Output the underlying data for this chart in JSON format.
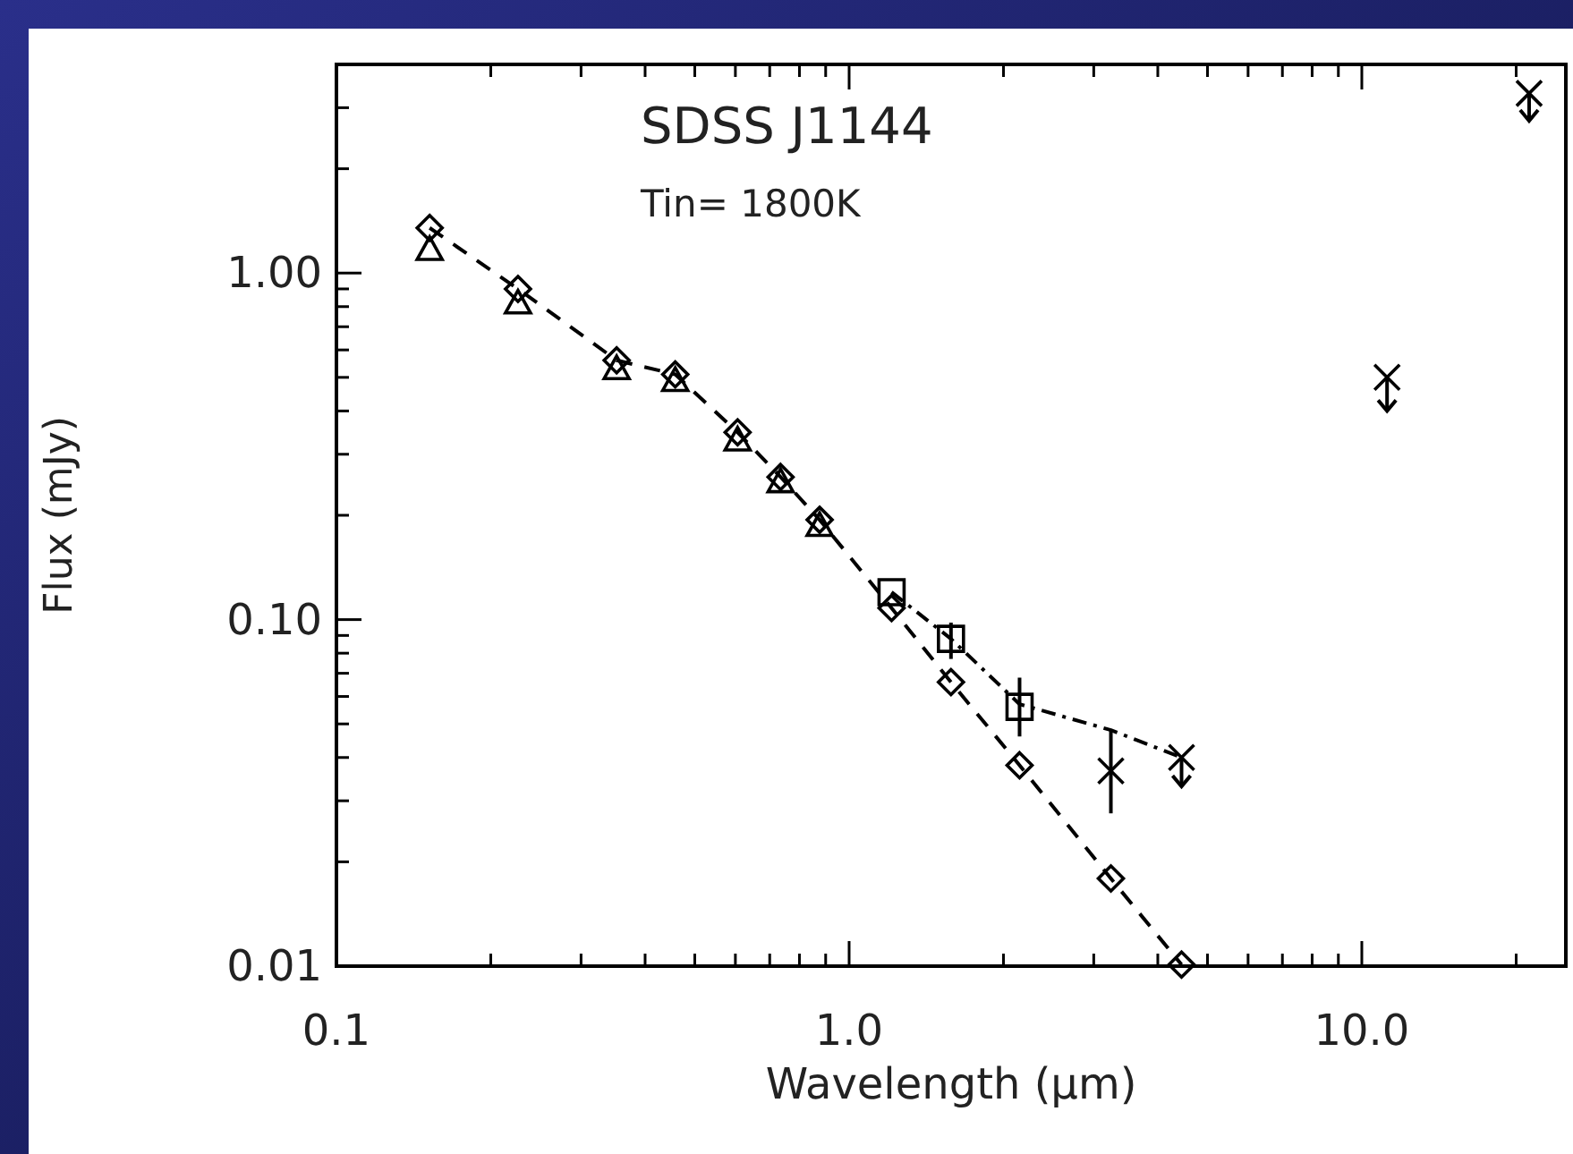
{
  "chart_data": {
    "type": "scatter",
    "title": "SDSS J1144",
    "annotations": [
      "Tin= 1800K"
    ],
    "xlabel": "Wavelength (μm)",
    "ylabel": "Flux (mJy)",
    "log": "xy",
    "xlim": [
      0.1,
      25
    ],
    "ylim": [
      0.01,
      4
    ],
    "xticks": [
      0.1,
      {
        "value": 0.2,
        "label": null
      },
      {
        "value": 0.3,
        "label": null
      },
      {
        "value": 0.4,
        "label": null
      },
      {
        "value": 0.5,
        "label": null
      },
      {
        "value": 0.6,
        "label": null
      },
      {
        "value": 0.7,
        "label": null
      },
      {
        "value": 0.8,
        "label": null
      },
      {
        "value": 0.9,
        "label": null
      },
      {
        "value": 1,
        "label": "1.0"
      },
      {
        "value": 2,
        "label": null
      },
      {
        "value": 3,
        "label": null
      },
      {
        "value": 4,
        "label": null
      },
      {
        "value": 5,
        "label": null
      },
      {
        "value": 6,
        "label": null
      },
      {
        "value": 7,
        "label": null
      },
      {
        "value": 8,
        "label": null
      },
      {
        "value": 9,
        "label": null
      },
      {
        "value": 10,
        "label": "10.0"
      },
      {
        "value": 20,
        "label": null
      }
    ],
    "yticks": [
      0.01,
      {
        "value": 0.02,
        "label": null
      },
      {
        "value": 0.03,
        "label": null
      },
      {
        "value": 0.04,
        "label": null
      },
      {
        "value": 0.05,
        "label": null
      },
      {
        "value": 0.06,
        "label": null
      },
      {
        "value": 0.07,
        "label": null
      },
      {
        "value": 0.08,
        "label": null
      },
      {
        "value": 0.09,
        "label": null
      },
      {
        "value": 0.1,
        "label": "0.10"
      },
      {
        "value": 0.2,
        "label": null
      },
      {
        "value": 0.3,
        "label": null
      },
      {
        "value": 0.4,
        "label": null
      },
      {
        "value": 0.5,
        "label": null
      },
      {
        "value": 0.6,
        "label": null
      },
      {
        "value": 0.7,
        "label": null
      },
      {
        "value": 0.8,
        "label": null
      },
      {
        "value": 0.9,
        "label": null
      },
      {
        "value": 1,
        "label": "1.00"
      },
      {
        "value": 2,
        "label": null
      },
      {
        "value": 3,
        "label": null
      }
    ],
    "series": [
      {
        "type": "line",
        "marker": "diamond",
        "line_style": "dashed",
        "color": "#000000",
        "x": [
          0.152,
          0.226,
          0.352,
          0.458,
          0.606,
          0.735,
          0.876,
          1.21,
          1.58,
          2.15,
          3.24,
          4.45
        ],
        "values": [
          1.35,
          0.9,
          0.56,
          0.51,
          0.347,
          0.258,
          0.194,
          0.108,
          0.066,
          0.038,
          0.0179,
          0.0101
        ]
      },
      {
        "type": "line",
        "marker": "none",
        "line_style": "dashdot",
        "color": "#000000",
        "x": [
          1.21,
          1.58,
          2.15,
          3.24,
          4.45
        ],
        "values": [
          0.12,
          0.088,
          0.057,
          0.048,
          0.04
        ]
      },
      {
        "marker": "triangle",
        "color": "#000000",
        "x": [
          0.152,
          0.226,
          0.352,
          0.458,
          0.606,
          0.735,
          0.876
        ],
        "values": [
          1.17,
          0.82,
          0.53,
          0.49,
          0.33,
          0.25,
          0.187
        ]
      },
      {
        "marker": "square",
        "color": "#000000",
        "x": [
          1.21,
          1.58,
          2.15
        ],
        "values": [
          0.12,
          0.088,
          0.056
        ],
        "errors": [
          null,
          [
            0.077,
            0.098
          ],
          [
            0.046,
            0.068
          ]
        ]
      },
      {
        "marker": "cross",
        "color": "#000000",
        "x": [
          3.24,
          4.45,
          11.2,
          21.2
        ],
        "values": [
          0.0366,
          0.04,
          0.5,
          3.3
        ],
        "errors": [
          [
            0.0276,
            0.048
          ],
          [
            0.033,
            0.04
          ],
          [
            0.4,
            0.5
          ],
          [
            2.75,
            3.3
          ]
        ]
      }
    ]
  }
}
